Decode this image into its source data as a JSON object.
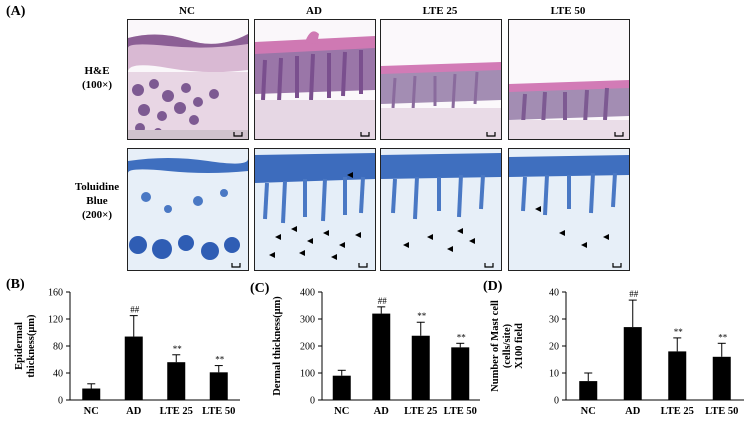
{
  "figure": {
    "panel_a_label": "(A)",
    "panel_b_label": "(B)",
    "panel_c_label": "(C)",
    "panel_d_label": "(D)",
    "column_headers": [
      "NC",
      "AD",
      "LTE 25",
      "LTE 50"
    ],
    "row_he": [
      "H&E",
      "(100×)"
    ],
    "row_tb": [
      "Toluidine",
      "Blue",
      "(200×)"
    ]
  },
  "colors": {
    "he_pink": "#e9d3e2",
    "he_purple": "#8c5f95",
    "tb_blue": "#3f6fbf",
    "tb_light": "#dfeaf6",
    "bar": "#000000"
  },
  "chart_data": [
    {
      "type": "bar",
      "categories": [
        "NC",
        "AD",
        "LTE 25",
        "LTE 50"
      ],
      "values": [
        17,
        94,
        56,
        41
      ],
      "errors": [
        7,
        31,
        11,
        10
      ],
      "annotations": [
        "",
        "##",
        "**",
        "**"
      ],
      "ylabel_lines": [
        "Epidermal",
        "thickness(μm)"
      ],
      "ylim": [
        0,
        160
      ],
      "yticks": [
        0,
        40,
        80,
        120,
        160
      ]
    },
    {
      "type": "bar",
      "categories": [
        "NC",
        "AD",
        "LTE 25",
        "LTE 50"
      ],
      "values": [
        90,
        320,
        238,
        195
      ],
      "errors": [
        20,
        25,
        50,
        15
      ],
      "annotations": [
        "",
        "##",
        "**",
        "**"
      ],
      "ylabel_lines": [
        "Dermal thickness(μm)"
      ],
      "ylim": [
        0,
        400
      ],
      "yticks": [
        0,
        100,
        200,
        300,
        400
      ]
    },
    {
      "type": "bar",
      "categories": [
        "NC",
        "AD",
        "LTE 25",
        "LTE 50"
      ],
      "values": [
        7,
        27,
        18,
        16
      ],
      "errors": [
        3,
        10,
        5,
        5
      ],
      "annotations": [
        "",
        "##",
        "**",
        "**"
      ],
      "ylabel_lines": [
        "Number of Mast cell",
        "(cells/site)",
        "X100 field"
      ],
      "ylim": [
        0,
        40
      ],
      "yticks": [
        0,
        10,
        20,
        30,
        40
      ]
    }
  ]
}
